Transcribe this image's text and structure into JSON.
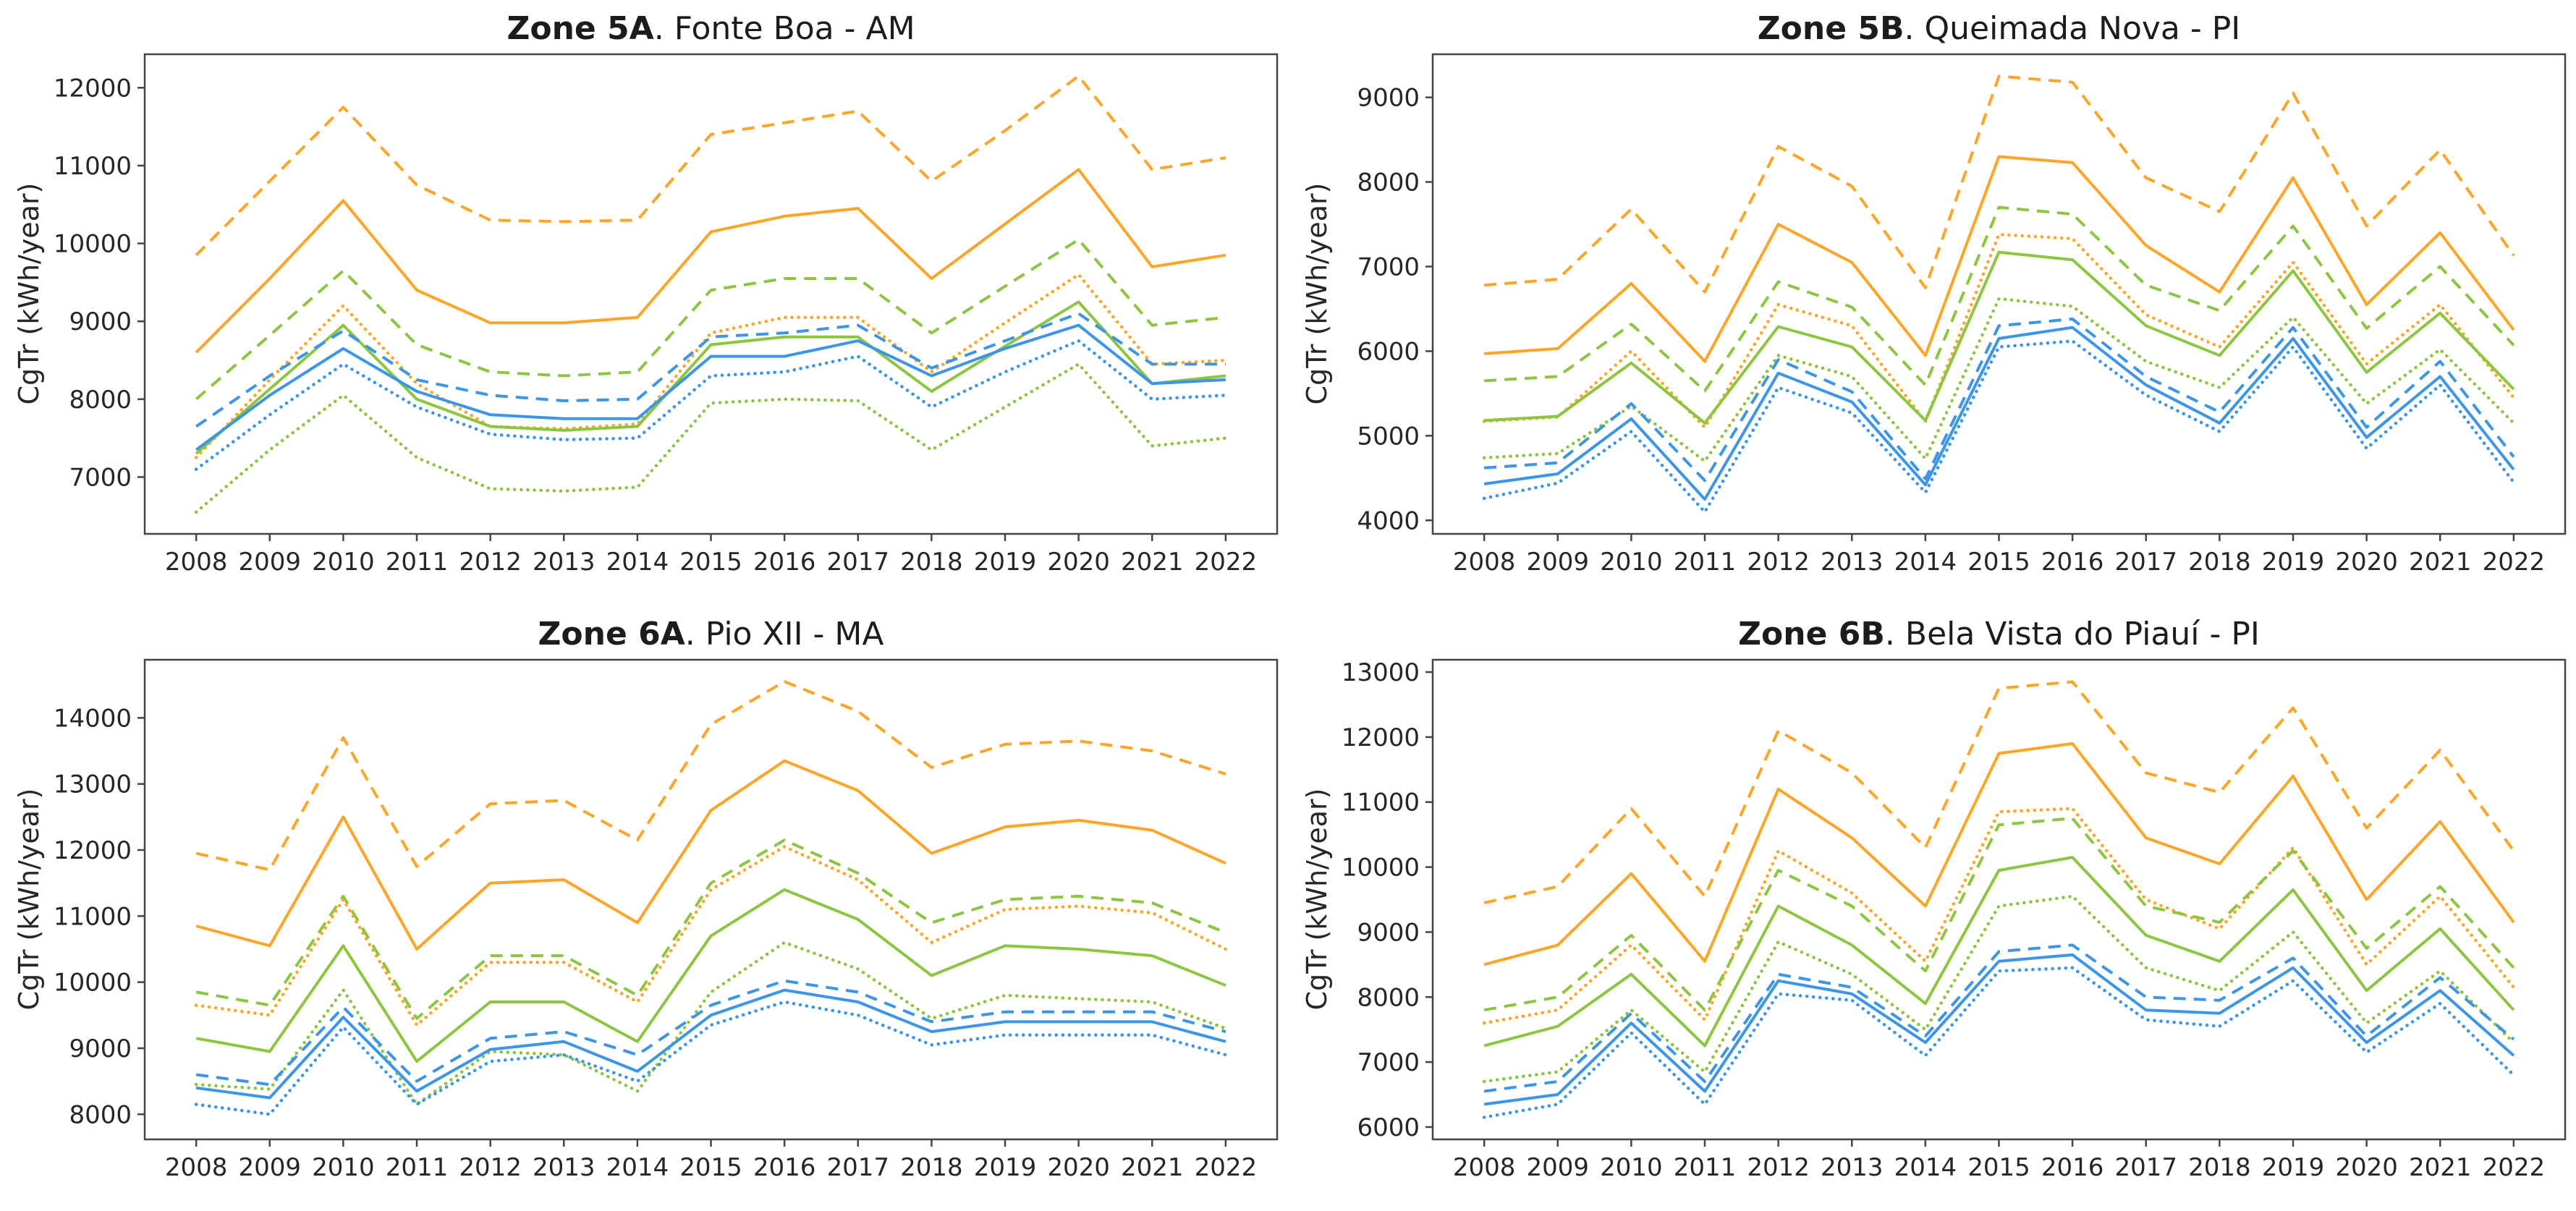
{
  "figure": {
    "ylabel": "CgTr (kWh/year)",
    "years_label_format": "year"
  },
  "palette": {
    "orange": "#FFA424",
    "green": "#8CC63E",
    "blue": "#3B95E8",
    "spine": "#444444",
    "tick_text": "#262626"
  },
  "chart_data": [
    {
      "type": "line",
      "title_bold": "Zone 5A",
      "title_rest": ". Fonte Boa - AM",
      "ylabel": "CgTr (kWh/year)",
      "xlabel": "",
      "grid": false,
      "legend": "none",
      "x": [
        2008,
        2009,
        2010,
        2011,
        2012,
        2013,
        2014,
        2015,
        2016,
        2017,
        2018,
        2019,
        2020,
        2021,
        2022
      ],
      "ylim": [
        6270,
        12430
      ],
      "yticks": [
        7000,
        8000,
        9000,
        10000,
        11000,
        12000
      ],
      "series": [
        {
          "name": "orange-dashed",
          "color": "orange",
          "style": "dashed",
          "values": [
            9850,
            10800,
            11750,
            10750,
            10300,
            10280,
            10300,
            11400,
            11550,
            11700,
            10800,
            11450,
            12150,
            10950,
            11100
          ]
        },
        {
          "name": "orange-solid",
          "color": "orange",
          "style": "solid",
          "values": [
            8600,
            9550,
            10550,
            9400,
            8980,
            8980,
            9050,
            10150,
            10350,
            10450,
            9550,
            10250,
            10950,
            9700,
            9850
          ]
        },
        {
          "name": "green-dashed",
          "color": "green",
          "style": "dashed",
          "values": [
            8000,
            8820,
            9650,
            8700,
            8350,
            8300,
            8350,
            9400,
            9550,
            9550,
            8850,
            9450,
            10050,
            8950,
            9050
          ]
        },
        {
          "name": "orange-dotted",
          "color": "orange",
          "style": "dotted",
          "values": [
            7250,
            8250,
            9200,
            8200,
            7650,
            7620,
            7680,
            8850,
            9050,
            9050,
            8350,
            8980,
            9600,
            8450,
            8500
          ]
        },
        {
          "name": "green-solid",
          "color": "green",
          "style": "solid",
          "values": [
            7300,
            8130,
            8950,
            8000,
            7650,
            7600,
            7650,
            8700,
            8800,
            8800,
            8100,
            8680,
            9250,
            8200,
            8300
          ]
        },
        {
          "name": "green-dotted",
          "color": "green",
          "style": "dotted",
          "values": [
            6550,
            7350,
            8050,
            7250,
            6850,
            6820,
            6870,
            7950,
            8000,
            7980,
            7350,
            7900,
            8450,
            7400,
            7500
          ]
        },
        {
          "name": "blue-dashed",
          "color": "blue",
          "style": "dashed",
          "values": [
            7650,
            8300,
            8880,
            8250,
            8050,
            7980,
            8000,
            8800,
            8850,
            8950,
            8400,
            8750,
            9100,
            8450,
            8450
          ]
        },
        {
          "name": "blue-solid",
          "color": "blue",
          "style": "solid",
          "values": [
            7350,
            8050,
            8650,
            8100,
            7800,
            7750,
            7750,
            8550,
            8550,
            8750,
            8300,
            8650,
            8950,
            8200,
            8250
          ]
        },
        {
          "name": "blue-dotted",
          "color": "blue",
          "style": "dotted",
          "values": [
            7100,
            7800,
            8450,
            7900,
            7550,
            7480,
            7500,
            8300,
            8350,
            8550,
            7900,
            8350,
            8750,
            8000,
            8050
          ]
        }
      ]
    },
    {
      "type": "line",
      "title_bold": "Zone 5B",
      "title_rest": ". Queimada Nova - PI",
      "ylabel": "CgTr (kWh/year)",
      "xlabel": "",
      "grid": false,
      "legend": "none",
      "x": [
        2008,
        2009,
        2010,
        2011,
        2012,
        2013,
        2014,
        2015,
        2016,
        2017,
        2018,
        2019,
        2020,
        2021,
        2022
      ],
      "ylim": [
        3840,
        9510
      ],
      "yticks": [
        4000,
        5000,
        6000,
        7000,
        8000,
        9000
      ],
      "series": [
        {
          "name": "orange-dashed",
          "color": "orange",
          "style": "dashed",
          "values": [
            6780,
            6850,
            7680,
            6700,
            8420,
            7950,
            6750,
            9250,
            9180,
            8050,
            7650,
            9050,
            7480,
            8380,
            7130
          ]
        },
        {
          "name": "orange-solid",
          "color": "orange",
          "style": "solid",
          "values": [
            5970,
            6030,
            6800,
            5880,
            7500,
            7050,
            5950,
            8300,
            8230,
            7250,
            6700,
            8050,
            6550,
            7400,
            6250
          ]
        },
        {
          "name": "green-dashed",
          "color": "green",
          "style": "dashed",
          "values": [
            5650,
            5700,
            6320,
            5530,
            6820,
            6520,
            5600,
            7700,
            7620,
            6780,
            6480,
            7480,
            6270,
            7000,
            6070
          ]
        },
        {
          "name": "orange-dotted",
          "color": "orange",
          "style": "dotted",
          "values": [
            5170,
            5220,
            6000,
            5100,
            6550,
            6300,
            5170,
            7380,
            7330,
            6430,
            6050,
            7050,
            5850,
            6550,
            5450
          ]
        },
        {
          "name": "green-solid",
          "color": "green",
          "style": "solid",
          "values": [
            5180,
            5230,
            5860,
            5150,
            6290,
            6050,
            5180,
            7170,
            7080,
            6300,
            5950,
            6950,
            5750,
            6450,
            5550
          ]
        },
        {
          "name": "green-dotted",
          "color": "green",
          "style": "dotted",
          "values": [
            4740,
            4790,
            5350,
            4700,
            5950,
            5700,
            4730,
            6620,
            6530,
            5880,
            5570,
            6400,
            5380,
            6020,
            5150
          ]
        },
        {
          "name": "blue-dashed",
          "color": "blue",
          "style": "dashed",
          "values": [
            4620,
            4680,
            5380,
            4470,
            5900,
            5520,
            4490,
            6300,
            6380,
            5700,
            5280,
            6280,
            5100,
            5880,
            4750
          ]
        },
        {
          "name": "blue-solid",
          "color": "blue",
          "style": "solid",
          "values": [
            4430,
            4550,
            5200,
            4250,
            5740,
            5400,
            4420,
            6150,
            6280,
            5600,
            5150,
            6150,
            4980,
            5700,
            4600
          ]
        },
        {
          "name": "blue-dotted",
          "color": "blue",
          "style": "dotted",
          "values": [
            4260,
            4440,
            5050,
            4100,
            5570,
            5270,
            4330,
            6050,
            6120,
            5480,
            5050,
            6050,
            4850,
            5600,
            4450
          ]
        }
      ]
    },
    {
      "type": "line",
      "title_bold": "Zone 6A",
      "title_rest": ". Pio XII - MA",
      "ylabel": "CgTr (kWh/year)",
      "xlabel": "",
      "grid": false,
      "legend": "none",
      "x": [
        2008,
        2009,
        2010,
        2011,
        2012,
        2013,
        2014,
        2015,
        2016,
        2017,
        2018,
        2019,
        2020,
        2021,
        2022
      ],
      "ylim": [
        7620,
        14880
      ],
      "yticks": [
        8000,
        9000,
        10000,
        11000,
        12000,
        13000,
        14000
      ],
      "series": [
        {
          "name": "orange-dashed",
          "color": "orange",
          "style": "dashed",
          "values": [
            11950,
            11700,
            13700,
            11750,
            12700,
            12750,
            12150,
            13900,
            14550,
            14100,
            13250,
            13600,
            13650,
            13500,
            13150
          ]
        },
        {
          "name": "orange-solid",
          "color": "orange",
          "style": "solid",
          "values": [
            10850,
            10550,
            12500,
            10500,
            11500,
            11550,
            10900,
            12600,
            13350,
            12900,
            11950,
            12350,
            12450,
            12300,
            11800
          ]
        },
        {
          "name": "green-dashed",
          "color": "green",
          "style": "dashed",
          "values": [
            9850,
            9650,
            11300,
            9450,
            10400,
            10400,
            9800,
            11500,
            12150,
            11650,
            10900,
            11250,
            11300,
            11200,
            10750
          ]
        },
        {
          "name": "orange-dotted",
          "color": "orange",
          "style": "dotted",
          "values": [
            9650,
            9500,
            11250,
            9350,
            10300,
            10300,
            9700,
            11400,
            12050,
            11550,
            10600,
            11100,
            11150,
            11050,
            10500
          ]
        },
        {
          "name": "green-solid",
          "color": "green",
          "style": "solid",
          "values": [
            9150,
            8950,
            10550,
            8800,
            9700,
            9700,
            9100,
            10700,
            11400,
            10950,
            10100,
            10550,
            10500,
            10400,
            9950
          ]
        },
        {
          "name": "green-dotted",
          "color": "green",
          "style": "dotted",
          "values": [
            8450,
            8380,
            9880,
            8150,
            8950,
            8900,
            8350,
            9850,
            10600,
            10200,
            9450,
            9800,
            9750,
            9700,
            9300
          ]
        },
        {
          "name": "blue-dashed",
          "color": "blue",
          "style": "dashed",
          "values": [
            8600,
            8450,
            9620,
            8500,
            9150,
            9250,
            8900,
            9650,
            10020,
            9850,
            9400,
            9550,
            9550,
            9550,
            9250
          ]
        },
        {
          "name": "blue-solid",
          "color": "blue",
          "style": "solid",
          "values": [
            8400,
            8250,
            9470,
            8350,
            8980,
            9100,
            8650,
            9500,
            9880,
            9700,
            9250,
            9400,
            9400,
            9400,
            9100
          ]
        },
        {
          "name": "blue-dotted",
          "color": "blue",
          "style": "dotted",
          "values": [
            8150,
            8000,
            9320,
            8150,
            8800,
            8900,
            8500,
            9350,
            9700,
            9500,
            9050,
            9200,
            9200,
            9200,
            8900
          ]
        }
      ]
    },
    {
      "type": "line",
      "title_bold": "Zone 6B",
      "title_rest": ". Bela Vista do Piauí - PI",
      "ylabel": "CgTr (kWh/year)",
      "xlabel": "",
      "grid": false,
      "legend": "none",
      "x": [
        2008,
        2009,
        2010,
        2011,
        2012,
        2013,
        2014,
        2015,
        2016,
        2017,
        2018,
        2019,
        2020,
        2021,
        2022
      ],
      "ylim": [
        5810,
        13190
      ],
      "yticks": [
        6000,
        7000,
        8000,
        9000,
        10000,
        11000,
        12000,
        13000
      ],
      "series": [
        {
          "name": "orange-dashed",
          "color": "orange",
          "style": "dashed",
          "values": [
            9450,
            9700,
            10900,
            9550,
            12100,
            11450,
            10300,
            12750,
            12850,
            11450,
            11150,
            12450,
            10600,
            11800,
            10250
          ]
        },
        {
          "name": "orange-solid",
          "color": "orange",
          "style": "solid",
          "values": [
            8500,
            8800,
            9900,
            8550,
            11200,
            10450,
            9400,
            11750,
            11900,
            10450,
            10050,
            11400,
            9500,
            10700,
            9150
          ]
        },
        {
          "name": "orange-dotted",
          "color": "orange",
          "style": "dotted",
          "values": [
            7600,
            7800,
            8800,
            7650,
            10250,
            9600,
            8550,
            10850,
            10900,
            9500,
            9050,
            10300,
            8500,
            9550,
            8150
          ]
        },
        {
          "name": "green-dashed",
          "color": "green",
          "style": "dashed",
          "values": [
            7800,
            8000,
            8950,
            7800,
            9950,
            9400,
            8400,
            10650,
            10750,
            9400,
            9150,
            10250,
            8750,
            9700,
            8450
          ]
        },
        {
          "name": "green-solid",
          "color": "green",
          "style": "solid",
          "values": [
            7250,
            7550,
            8350,
            7250,
            9400,
            8800,
            7900,
            9950,
            10150,
            8950,
            8550,
            9650,
            8100,
            9050,
            7800
          ]
        },
        {
          "name": "green-dotted",
          "color": "green",
          "style": "dotted",
          "values": [
            6700,
            6850,
            7800,
            6850,
            8850,
            8350,
            7500,
            9400,
            9550,
            8450,
            8100,
            9000,
            7600,
            8400,
            7300
          ]
        },
        {
          "name": "blue-dashed",
          "color": "blue",
          "style": "dashed",
          "values": [
            6550,
            6700,
            7750,
            6700,
            8350,
            8150,
            7400,
            8700,
            8800,
            8000,
            7950,
            8600,
            7400,
            8300,
            7350
          ]
        },
        {
          "name": "blue-solid",
          "color": "blue",
          "style": "solid",
          "values": [
            6350,
            6500,
            7600,
            6550,
            8250,
            8050,
            7300,
            8550,
            8650,
            7800,
            7750,
            8450,
            7300,
            8100,
            7100
          ]
        },
        {
          "name": "blue-dotted",
          "color": "blue",
          "style": "dotted",
          "values": [
            6150,
            6350,
            7450,
            6350,
            8050,
            7950,
            7100,
            8400,
            8450,
            7650,
            7550,
            8250,
            7150,
            7900,
            6800
          ]
        }
      ]
    }
  ]
}
